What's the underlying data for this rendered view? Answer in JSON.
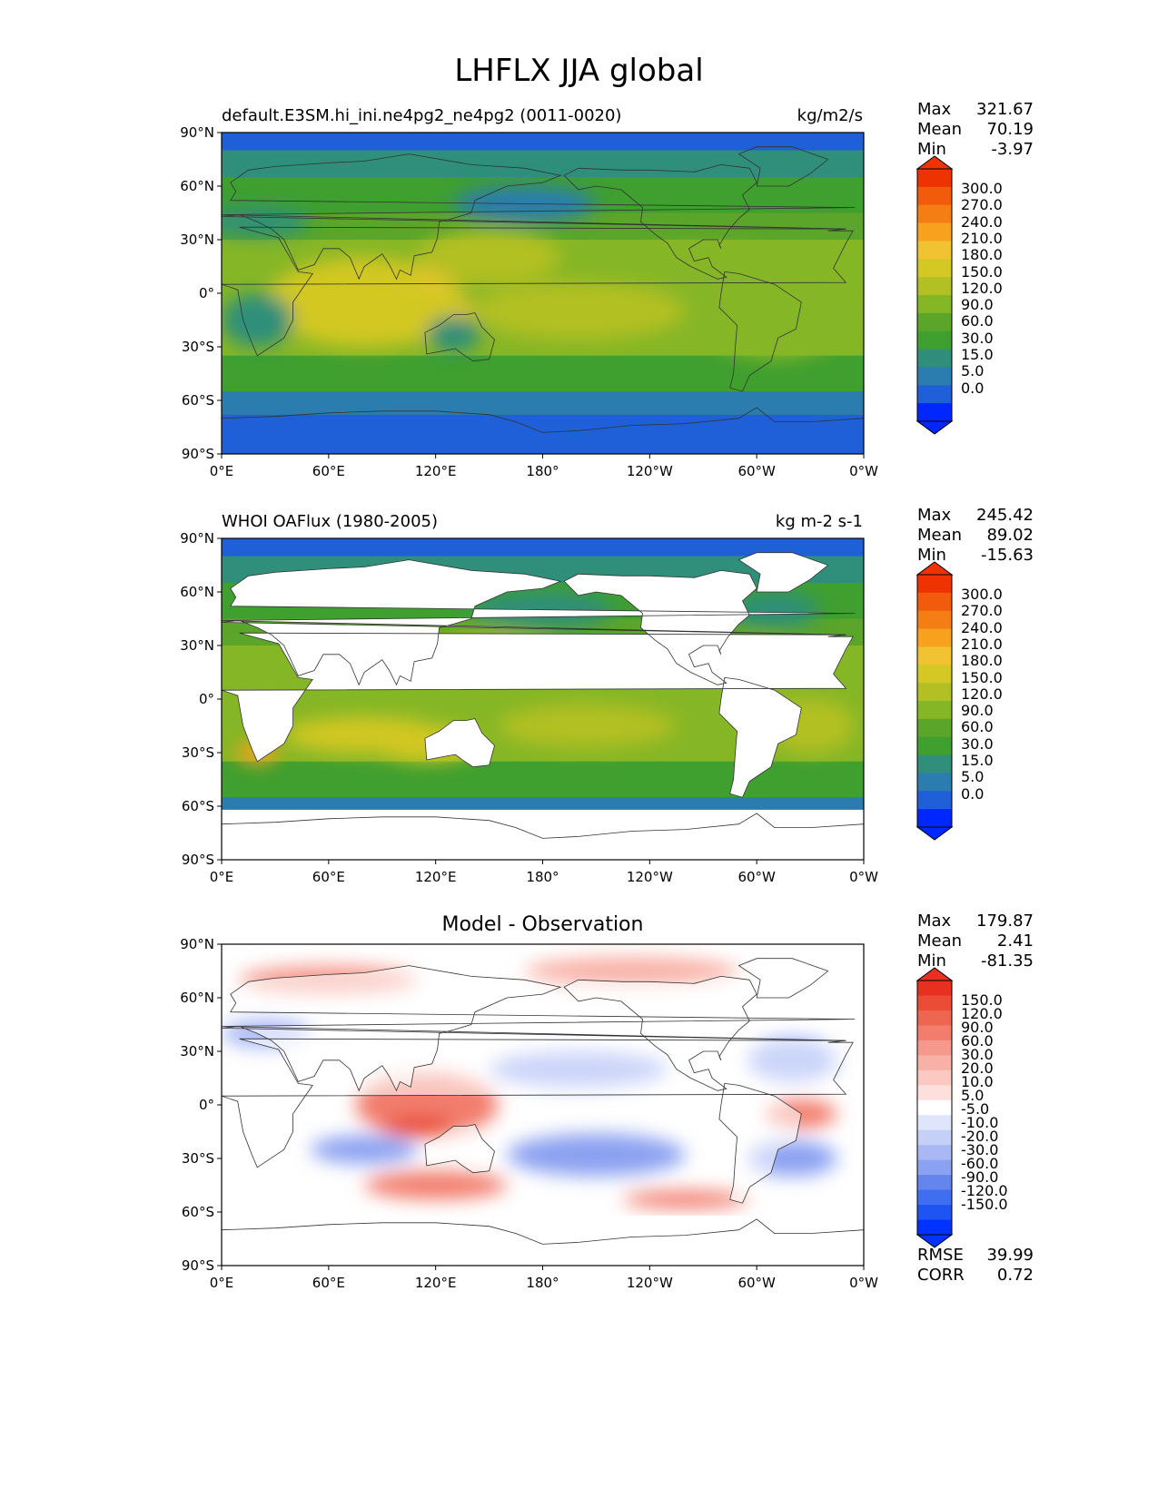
{
  "figure_title": "LHFLX JJA global",
  "panels": [
    {
      "title_left": "default.E3SM.hi_ini.ne4pg2_ne4pg2 (0011-0020)",
      "title_center": "",
      "title_right": "kg/m2/s",
      "stats": [
        [
          "Max",
          "321.67"
        ],
        [
          "Mean",
          "70.19"
        ],
        [
          "Min",
          "-3.97"
        ]
      ],
      "colorbar": [
        "300.0",
        "270.0",
        "240.0",
        "210.0",
        "180.0",
        "150.0",
        "120.0",
        "90.0",
        "60.0",
        "30.0",
        "15.0",
        "5.0",
        "0.0"
      ],
      "extra_stats": []
    },
    {
      "title_left": "WHOI OAFlux (1980-2005)",
      "title_center": "",
      "title_right": "kg m-2 s-1",
      "stats": [
        [
          "Max",
          "245.42"
        ],
        [
          "Mean",
          "89.02"
        ],
        [
          "Min",
          "-15.63"
        ]
      ],
      "colorbar": [
        "300.0",
        "270.0",
        "240.0",
        "210.0",
        "180.0",
        "150.0",
        "120.0",
        "90.0",
        "60.0",
        "30.0",
        "15.0",
        "5.0",
        "0.0"
      ],
      "extra_stats": []
    },
    {
      "title_left": "",
      "title_center": "Model - Observation",
      "title_right": "",
      "stats": [
        [
          "Max",
          "179.87"
        ],
        [
          "Mean",
          "2.41"
        ],
        [
          "Min",
          "-81.35"
        ]
      ],
      "colorbar": [
        "150.0",
        "120.0",
        "90.0",
        "60.0",
        "30.0",
        "20.0",
        "10.0",
        "5.0",
        "-5.0",
        "-10.0",
        "-20.0",
        "-30.0",
        "-60.0",
        "-90.0",
        "-120.0",
        "-150.0"
      ],
      "extra_stats": [
        [
          "RMSE",
          "39.99"
        ],
        [
          "CORR",
          "0.72"
        ]
      ]
    }
  ],
  "axes": {
    "x_ticks": [
      "0°E",
      "60°E",
      "120°E",
      "180°",
      "120°W",
      "60°W",
      "0°W"
    ],
    "y_ticks": [
      "90°N",
      "60°N",
      "30°N",
      "0°",
      "30°S",
      "60°S",
      "90°S"
    ]
  },
  "colors": {
    "seq": [
      "#0027ff",
      "#1f5fd8",
      "#2b7db0",
      "#2f8f7a",
      "#3f9f2f",
      "#5aa52a",
      "#85b626",
      "#b3c023",
      "#d3c824",
      "#f1c232",
      "#f7a11f",
      "#f57e14",
      "#f25a0c",
      "#ef3300"
    ],
    "div": [
      "#0033ff",
      "#1f54f2",
      "#3f6ff0",
      "#6585ee",
      "#8ba1f1",
      "#a9b8f4",
      "#c5d0f7",
      "#dfe5fb",
      "#ffffff",
      "#fde0dc",
      "#fbc9c1",
      "#f8b1a6",
      "#f5998c",
      "#f27d6d",
      "#ee6550",
      "#ea4c35",
      "#e63020"
    ],
    "land_mask": "#ffffff",
    "coast": "#333333"
  },
  "chart_data": [
    {
      "type": "heatmap",
      "title": "default.E3SM.hi_ini.ne4pg2_ne4pg2 (0011-0020)",
      "units": "kg/m2/s",
      "xlim": [
        0,
        360
      ],
      "ylim": [
        -90,
        90
      ],
      "levels": [
        0,
        5,
        15,
        30,
        60,
        90,
        120,
        150,
        180,
        210,
        240,
        270,
        300
      ],
      "max": 321.67,
      "mean": 70.19,
      "min": -3.97,
      "fields": [
        {
          "lon": 100,
          "lat": -15,
          "rx": 30,
          "ry": 10,
          "v": 260
        },
        {
          "lon": 95,
          "lat": -10,
          "rx": 45,
          "ry": 18,
          "v": 190
        },
        {
          "lon": 80,
          "lat": -5,
          "rx": 55,
          "ry": 25,
          "v": 150
        },
        {
          "lon": 125,
          "lat": 12,
          "rx": 15,
          "ry": 8,
          "v": 200
        },
        {
          "lon": 200,
          "lat": -10,
          "rx": 60,
          "ry": 16,
          "v": 140
        },
        {
          "lon": 330,
          "lat": -10,
          "rx": 22,
          "ry": 14,
          "v": 230
        },
        {
          "lon": 310,
          "lat": -12,
          "rx": 45,
          "ry": 25,
          "v": 110
        },
        {
          "lon": 150,
          "lat": 20,
          "rx": 40,
          "ry": 15,
          "v": 120
        },
        {
          "lon": 270,
          "lat": 15,
          "rx": 40,
          "ry": 12,
          "v": 110
        },
        {
          "lon": 20,
          "lat": -15,
          "rx": 20,
          "ry": 15,
          "v": 20
        },
        {
          "lon": 130,
          "lat": -23,
          "rx": 15,
          "ry": 10,
          "v": 25
        },
        {
          "lon": 170,
          "lat": 50,
          "rx": 40,
          "ry": 10,
          "v": 10
        },
        {
          "lon": 20,
          "lat": 40,
          "rx": 30,
          "ry": 8,
          "v": 20
        }
      ]
    },
    {
      "type": "heatmap",
      "title": "WHOI OAFlux (1980-2005)",
      "units": "kg m-2 s-1",
      "xlim": [
        0,
        360
      ],
      "ylim": [
        -90,
        90
      ],
      "levels": [
        0,
        5,
        15,
        30,
        60,
        90,
        120,
        150,
        180,
        210,
        240,
        270,
        300
      ],
      "max": 245.42,
      "mean": 89.02,
      "min": -15.63,
      "fields": [
        {
          "lon": 20,
          "lat": -30,
          "rx": 12,
          "ry": 6,
          "v": 210
        },
        {
          "lon": 115,
          "lat": -25,
          "rx": 30,
          "ry": 10,
          "v": 170
        },
        {
          "lon": 80,
          "lat": -20,
          "rx": 45,
          "ry": 10,
          "v": 150
        },
        {
          "lon": 205,
          "lat": -15,
          "rx": 50,
          "ry": 12,
          "v": 140
        },
        {
          "lon": 150,
          "lat": 25,
          "rx": 40,
          "ry": 12,
          "v": 120
        },
        {
          "lon": 300,
          "lat": 20,
          "rx": 30,
          "ry": 12,
          "v": 120
        },
        {
          "lon": 330,
          "lat": -15,
          "rx": 25,
          "ry": 15,
          "v": 140
        },
        {
          "lon": 180,
          "lat": 50,
          "rx": 40,
          "ry": 10,
          "v": 20
        },
        {
          "lon": 310,
          "lat": 50,
          "rx": 25,
          "ry": 10,
          "v": 15
        }
      ]
    },
    {
      "type": "heatmap",
      "title": "Model - Observation",
      "units": "",
      "xlim": [
        0,
        360
      ],
      "ylim": [
        -90,
        90
      ],
      "levels": [
        -150,
        -120,
        -90,
        -60,
        -30,
        -20,
        -10,
        -5,
        5,
        10,
        20,
        30,
        60,
        90,
        120,
        150
      ],
      "max": 179.87,
      "mean": 2.41,
      "min": -81.35,
      "rmse": 39.99,
      "corr": 0.72,
      "fields": [
        {
          "lon": 115,
          "lat": 0,
          "rx": 40,
          "ry": 18,
          "v": 60
        },
        {
          "lon": 110,
          "lat": -12,
          "rx": 20,
          "ry": 6,
          "v": 120
        },
        {
          "lon": 120,
          "lat": -45,
          "rx": 40,
          "ry": 8,
          "v": 60
        },
        {
          "lon": 80,
          "lat": -25,
          "rx": 30,
          "ry": 8,
          "v": -60
        },
        {
          "lon": 25,
          "lat": 40,
          "rx": 25,
          "ry": 8,
          "v": -30
        },
        {
          "lon": 200,
          "lat": 20,
          "rx": 50,
          "ry": 10,
          "v": -60
        },
        {
          "lon": 210,
          "lat": -28,
          "rx": 50,
          "ry": 12,
          "v": -60
        },
        {
          "lon": 320,
          "lat": 25,
          "rx": 25,
          "ry": 12,
          "v": -60
        },
        {
          "lon": 320,
          "lat": -30,
          "rx": 25,
          "ry": 10,
          "v": -60
        },
        {
          "lon": 325,
          "lat": -5,
          "rx": 20,
          "ry": 8,
          "v": 60
        },
        {
          "lon": 260,
          "lat": -53,
          "rx": 35,
          "ry": 5,
          "v": 60
        },
        {
          "lon": 60,
          "lat": 70,
          "rx": 50,
          "ry": 8,
          "v": 30
        },
        {
          "lon": 230,
          "lat": 75,
          "rx": 60,
          "ry": 8,
          "v": 20
        }
      ]
    }
  ]
}
